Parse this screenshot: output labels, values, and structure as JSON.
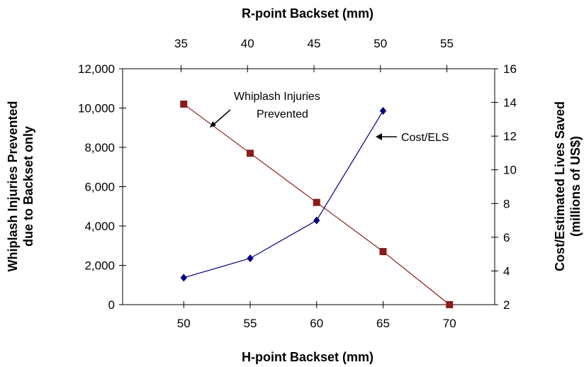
{
  "chart_data": {
    "type": "line",
    "x_bottom": {
      "label": "H-point Backset (mm)",
      "ticks": [
        50,
        55,
        60,
        65,
        70
      ],
      "range": [
        45.4,
        73.4
      ]
    },
    "x_top": {
      "label": "R-point Backset (mm)",
      "ticks": [
        35,
        40,
        45,
        50,
        55
      ],
      "range": [
        30.6,
        58.6
      ]
    },
    "y_left": {
      "label_line1": "Whiplash Injuries Prevented",
      "label_line2": "due to Backset only",
      "ticks": [
        0,
        2000,
        4000,
        6000,
        8000,
        10000,
        12000
      ],
      "tick_labels": [
        "0",
        "2,000",
        "4,000",
        "6,000",
        "8,000",
        "10,000",
        "12,000"
      ],
      "ylim": [
        0,
        12000
      ]
    },
    "y_right": {
      "label_line1": "Cost/Estimated Lives Saved",
      "label_line2": "(millions of US$)",
      "ticks": [
        2,
        4,
        6,
        8,
        10,
        12,
        14,
        16
      ],
      "ylim": [
        2,
        16
      ]
    },
    "series": [
      {
        "name": "Whiplash Injuries Prevented",
        "axis": "left",
        "color": "#8b1a1a",
        "marker": "square",
        "x": [
          50,
          55,
          60,
          65,
          70
        ],
        "y": [
          10200,
          7700,
          5200,
          2700,
          0
        ]
      },
      {
        "name": "Cost/ELS",
        "axis": "right",
        "color": "#000080",
        "marker": "diamond",
        "x": [
          50,
          55,
          60,
          65
        ],
        "y": [
          3.6,
          4.75,
          7.0,
          13.5
        ]
      }
    ],
    "annotations": [
      {
        "text_line1": "Whiplash Injuries",
        "text_line2": "Prevented"
      },
      {
        "text_line1": "Cost/ELS"
      }
    ],
    "grid": false,
    "legend": "none"
  }
}
